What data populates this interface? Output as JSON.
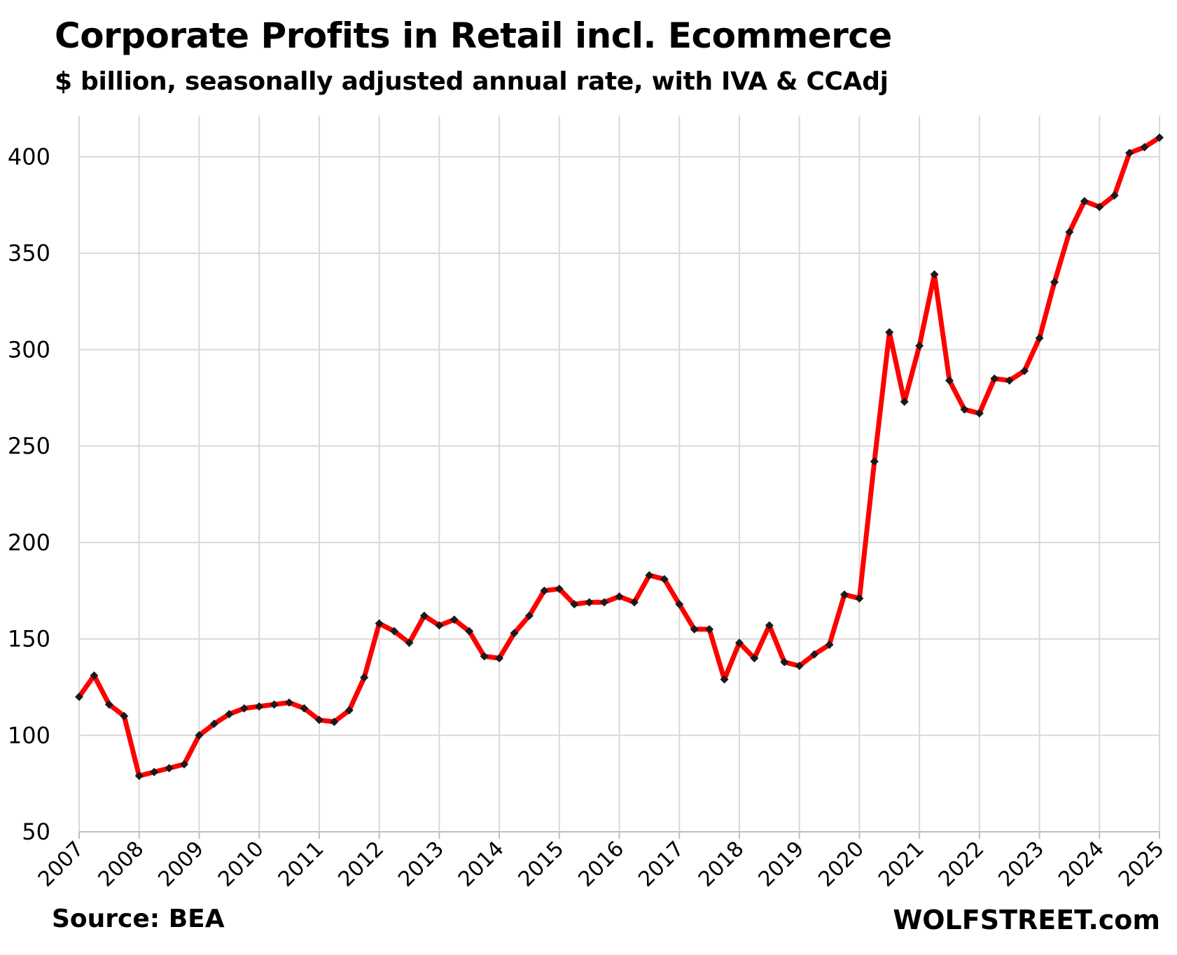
{
  "header": {
    "title": "Corporate Profits in Retail incl. Ecommerce",
    "subtitle": "$ billion, seasonally adjusted annual rate, with IVA & CCAdj"
  },
  "footer": {
    "source": "Source: BEA",
    "brand": "WOLFSTREET.com"
  },
  "colors": {
    "line": "#ff0000",
    "marker": "#1a1a1a",
    "grid": "#d9d9d9"
  },
  "chart_data": {
    "type": "line",
    "title": "Corporate Profits in Retail incl. Ecommerce",
    "subtitle": "$ billion, seasonally adjusted annual rate, with IVA & CCAdj",
    "xlabel": "",
    "ylabel": "",
    "ylim": [
      50,
      420
    ],
    "xlim": [
      2007,
      2025
    ],
    "yticks": [
      50,
      100,
      150,
      200,
      250,
      300,
      350,
      400
    ],
    "xticks": [
      "2007",
      "2008",
      "2009",
      "2010",
      "2011",
      "2012",
      "2013",
      "2014",
      "2015",
      "2016",
      "2017",
      "2018",
      "2019",
      "2020",
      "2021",
      "2022",
      "2023",
      "2024",
      "2025"
    ],
    "grid": true,
    "marker": "diamond",
    "series": [
      {
        "x": [
          2007.0,
          2007.25,
          2007.5,
          2007.75,
          2008.0,
          2008.25,
          2008.5,
          2008.75,
          2009.0,
          2009.25,
          2009.5,
          2009.75,
          2010.0,
          2010.25,
          2010.5,
          2010.75,
          2011.0,
          2011.25,
          2011.5,
          2011.75,
          2012.0,
          2012.25,
          2012.5,
          2012.75,
          2013.0,
          2013.25,
          2013.5,
          2013.75,
          2014.0,
          2014.25,
          2014.5,
          2014.75,
          2015.0,
          2015.25,
          2015.5,
          2015.75,
          2016.0,
          2016.25,
          2016.5,
          2016.75,
          2017.0,
          2017.25,
          2017.5,
          2017.75,
          2018.0,
          2018.25,
          2018.5,
          2018.75,
          2019.0,
          2019.25,
          2019.5,
          2019.75,
          2020.0,
          2020.25,
          2020.5,
          2020.75,
          2021.0,
          2021.25,
          2021.5,
          2021.75,
          2022.0,
          2022.25,
          2022.5,
          2022.75,
          2023.0,
          2023.25,
          2023.5,
          2023.75,
          2024.0,
          2024.25,
          2024.5,
          2024.75,
          2025.0
        ],
        "values": [
          120,
          131,
          116,
          110,
          79,
          81,
          83,
          85,
          100,
          106,
          111,
          114,
          115,
          116,
          117,
          114,
          108,
          107,
          113,
          130,
          158,
          154,
          148,
          162,
          157,
          160,
          154,
          141,
          140,
          153,
          162,
          175,
          176,
          168,
          169,
          169,
          172,
          169,
          183,
          181,
          168,
          155,
          155,
          129,
          148,
          140,
          157,
          138,
          136,
          142,
          147,
          173,
          171,
          242,
          309,
          273,
          302,
          339,
          284,
          269,
          267,
          285,
          284,
          289,
          306,
          335,
          361,
          377,
          374,
          380,
          402,
          405,
          410
        ]
      }
    ]
  }
}
